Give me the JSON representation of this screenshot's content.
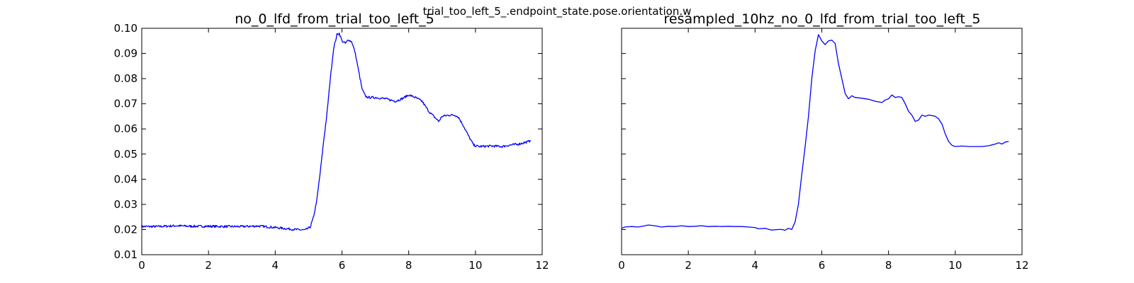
{
  "figure": {
    "suptitle": "trial_too_left_5_.endpoint_state.pose.orientation.w"
  },
  "chart_data": [
    {
      "type": "line",
      "title": "no_0_lfd_from_trial_too_left_5",
      "xlabel": "",
      "ylabel": "",
      "xlim": [
        0,
        12
      ],
      "ylim": [
        0.01,
        0.1
      ],
      "xticks": [
        "0",
        "2",
        "4",
        "6",
        "8",
        "10",
        "12"
      ],
      "yticks": [
        "0.01",
        "0.02",
        "0.03",
        "0.04",
        "0.05",
        "0.06",
        "0.07",
        "0.08",
        "0.09",
        "0.10"
      ],
      "show_ytick_labels": true,
      "color": "#0000ff",
      "noisy": true,
      "series": [
        {
          "x": [
            0,
            0.5,
            1.0,
            1.5,
            2.0,
            2.5,
            3.0,
            3.5,
            4.0,
            4.3,
            4.6,
            4.9,
            5.05,
            5.15,
            5.25,
            5.35,
            5.45,
            5.55,
            5.65,
            5.75,
            5.85,
            5.92,
            6.0,
            6.1,
            6.2,
            6.3,
            6.4,
            6.5,
            6.6,
            6.7,
            6.8,
            7.0,
            7.3,
            7.6,
            7.8,
            8.0,
            8.2,
            8.4,
            8.6,
            8.75,
            8.9,
            9.0,
            9.2,
            9.4,
            9.5,
            9.65,
            9.8,
            9.95,
            10.1,
            10.5,
            10.8,
            11.0,
            11.3,
            11.6,
            11.65
          ],
          "y": [
            0.0212,
            0.0212,
            0.0215,
            0.0213,
            0.0213,
            0.0212,
            0.0212,
            0.0214,
            0.0208,
            0.0204,
            0.02,
            0.0198,
            0.021,
            0.025,
            0.032,
            0.043,
            0.055,
            0.066,
            0.08,
            0.092,
            0.0975,
            0.098,
            0.095,
            0.094,
            0.0955,
            0.0945,
            0.09,
            0.083,
            0.076,
            0.073,
            0.0725,
            0.0725,
            0.072,
            0.071,
            0.072,
            0.0735,
            0.0725,
            0.071,
            0.067,
            0.065,
            0.063,
            0.065,
            0.0655,
            0.0655,
            0.0645,
            0.061,
            0.057,
            0.0535,
            0.053,
            0.0532,
            0.053,
            0.0535,
            0.054,
            0.055,
            0.0555
          ]
        }
      ]
    },
    {
      "type": "line",
      "title": "resampled_10hz_no_0_lfd_from_trial_too_left_5",
      "xlabel": "",
      "ylabel": "",
      "xlim": [
        0,
        12
      ],
      "ylim": [
        0.01,
        0.1
      ],
      "xticks": [
        "0",
        "2",
        "4",
        "6",
        "8",
        "10",
        "12"
      ],
      "yticks": [
        "0.01",
        "0.02",
        "0.03",
        "0.04",
        "0.05",
        "0.06",
        "0.07",
        "0.08",
        "0.09",
        "0.10"
      ],
      "show_ytick_labels": false,
      "color": "#0000ff",
      "noisy": false,
      "series": [
        {
          "x": [
            0,
            0.1,
            0.3,
            0.5,
            0.7,
            0.8,
            1.0,
            1.2,
            1.4,
            1.6,
            1.8,
            2.0,
            2.2,
            2.4,
            2.6,
            2.8,
            3.0,
            3.2,
            3.4,
            3.6,
            3.8,
            4.0,
            4.1,
            4.3,
            4.5,
            4.7,
            4.8,
            4.9,
            5.0,
            5.1,
            5.2,
            5.3,
            5.4,
            5.5,
            5.6,
            5.7,
            5.8,
            5.9,
            6.0,
            6.1,
            6.2,
            6.3,
            6.4,
            6.5,
            6.6,
            6.7,
            6.8,
            6.9,
            7.0,
            7.2,
            7.4,
            7.6,
            7.8,
            7.9,
            8.0,
            8.1,
            8.2,
            8.3,
            8.4,
            8.5,
            8.6,
            8.7,
            8.8,
            8.9,
            9.0,
            9.1,
            9.2,
            9.3,
            9.4,
            9.5,
            9.6,
            9.7,
            9.8,
            9.9,
            10.0,
            10.2,
            10.4,
            10.6,
            10.8,
            11.0,
            11.2,
            11.3,
            11.4,
            11.5,
            11.6
          ],
          "y": [
            0.0205,
            0.021,
            0.0212,
            0.021,
            0.0215,
            0.0218,
            0.0215,
            0.021,
            0.0213,
            0.0212,
            0.0215,
            0.0212,
            0.0213,
            0.0215,
            0.0212,
            0.0213,
            0.0212,
            0.0213,
            0.0212,
            0.0212,
            0.021,
            0.0208,
            0.0203,
            0.0205,
            0.0198,
            0.02,
            0.02,
            0.0197,
            0.0205,
            0.02,
            0.023,
            0.03,
            0.042,
            0.053,
            0.065,
            0.08,
            0.091,
            0.0975,
            0.095,
            0.0935,
            0.095,
            0.0953,
            0.094,
            0.086,
            0.08,
            0.074,
            0.072,
            0.0732,
            0.0725,
            0.0722,
            0.0718,
            0.071,
            0.0705,
            0.0715,
            0.072,
            0.0735,
            0.0725,
            0.0728,
            0.0725,
            0.07,
            0.067,
            0.0655,
            0.063,
            0.0635,
            0.0655,
            0.065,
            0.0655,
            0.0653,
            0.065,
            0.064,
            0.062,
            0.058,
            0.055,
            0.0535,
            0.053,
            0.0532,
            0.053,
            0.053,
            0.053,
            0.0533,
            0.054,
            0.0545,
            0.054,
            0.0548,
            0.055
          ]
        }
      ]
    }
  ]
}
